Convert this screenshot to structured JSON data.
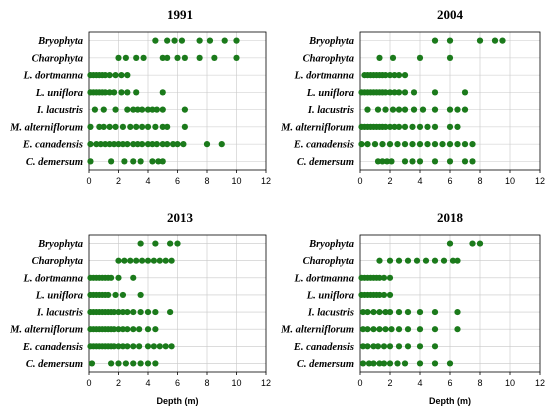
{
  "figure": {
    "colors": {
      "dot": "#1b7a1b",
      "grid": "#c8c8c8",
      "frame": "#000000"
    }
  },
  "chart_data": [
    {
      "type": "scatter",
      "title": "1991",
      "xlabel": "",
      "ylabel": "",
      "xlim": [
        0,
        12
      ],
      "xticks": [
        "0",
        "2",
        "4",
        "6",
        "8",
        "10",
        "12"
      ],
      "grid": true,
      "categories": [
        "Bryophyta",
        "Charophyta",
        "L. dortmanna",
        "L. uniflora",
        "I. lacustris",
        "M. alterniflorum",
        "E. canadensis",
        "C. demersum"
      ],
      "series": [
        {
          "category": "Bryophyta",
          "x": [
            4.5,
            5.3,
            5.8,
            6.3,
            7.5,
            8.2,
            9.2,
            10.0
          ]
        },
        {
          "category": "Charophyta",
          "x": [
            2.0,
            2.5,
            3.2,
            3.7,
            5.0,
            5.3,
            6.0,
            6.5,
            7.5,
            8.5,
            10.0
          ]
        },
        {
          "category": "L. dortmanna",
          "x": [
            0.1,
            0.3,
            0.5,
            0.7,
            0.9,
            1.1,
            1.4,
            1.8,
            2.2,
            2.6
          ]
        },
        {
          "category": "L. uniflora",
          "x": [
            0.1,
            0.3,
            0.5,
            0.7,
            0.9,
            1.1,
            1.4,
            1.7,
            2.2,
            2.6,
            3.2,
            5.0
          ]
        },
        {
          "category": "I. lacustris",
          "x": [
            0.4,
            1.0,
            1.8,
            2.6,
            3.0,
            3.3,
            3.6,
            4.0,
            4.3,
            4.6,
            5.0,
            6.5
          ]
        },
        {
          "category": "M. alterniflorum",
          "x": [
            0.1,
            0.7,
            1.0,
            1.4,
            1.8,
            2.3,
            2.8,
            3.2,
            3.6,
            4.0,
            4.5,
            5.0,
            5.3,
            6.5
          ]
        },
        {
          "category": "E. canadensis",
          "x": [
            0.1,
            0.5,
            0.8,
            1.1,
            1.4,
            1.7,
            2.0,
            2.3,
            2.6,
            3.0,
            3.3,
            3.6,
            4.0,
            4.3,
            4.6,
            5.0,
            5.3,
            5.7,
            6.0,
            6.4,
            8.0,
            9.0
          ]
        },
        {
          "category": "C. demersum",
          "x": [
            0.1,
            1.5,
            2.4,
            3.0,
            3.5,
            4.3,
            4.7,
            5.0
          ]
        }
      ]
    },
    {
      "type": "scatter",
      "title": "2004",
      "xlabel": "",
      "ylabel": "",
      "xlim": [
        0,
        12
      ],
      "xticks": [
        "0",
        "2",
        "4",
        "6",
        "8",
        "10",
        "12"
      ],
      "grid": true,
      "categories": [
        "Bryophyta",
        "Charophyta",
        "L. dortmanna",
        "L. uniflora",
        "I. lacustris",
        "M. alterniflorum",
        "E. canadensis",
        "C. demersum"
      ],
      "series": [
        {
          "category": "Bryophyta",
          "x": [
            5.0,
            6.0,
            8.0,
            9.0,
            9.5
          ]
        },
        {
          "category": "Charophyta",
          "x": [
            1.3,
            2.2,
            4.0,
            6.0
          ]
        },
        {
          "category": "L. dortmanna",
          "x": [
            0.3,
            0.5,
            0.7,
            0.9,
            1.1,
            1.3,
            1.5,
            1.7,
            2.0,
            2.3,
            2.6,
            3.0
          ]
        },
        {
          "category": "L. uniflora",
          "x": [
            0.1,
            0.3,
            0.5,
            0.7,
            0.9,
            1.1,
            1.3,
            1.5,
            1.7,
            2.0,
            2.3,
            2.6,
            3.0,
            3.6,
            5.0,
            7.0
          ]
        },
        {
          "category": "I. lacustris",
          "x": [
            0.5,
            1.2,
            1.7,
            2.2,
            2.6,
            3.0,
            3.6,
            4.2,
            5.0,
            6.0,
            6.5,
            7.0
          ]
        },
        {
          "category": "M. alterniflorum",
          "x": [
            0.1,
            0.3,
            0.5,
            0.7,
            0.9,
            1.1,
            1.3,
            1.5,
            1.7,
            2.0,
            2.3,
            2.6,
            3.0,
            3.5,
            4.0,
            4.5,
            5.0,
            6.0,
            6.5
          ]
        },
        {
          "category": "E. canadensis",
          "x": [
            0.1,
            0.5,
            1.0,
            1.5,
            2.0,
            2.5,
            3.0,
            3.5,
            4.0,
            4.5,
            5.0,
            5.5,
            6.0,
            6.5,
            7.0,
            7.5
          ]
        },
        {
          "category": "C. demersum",
          "x": [
            1.2,
            1.5,
            1.8,
            2.1,
            3.0,
            3.5,
            4.0,
            5.0,
            6.0,
            7.0,
            7.5
          ]
        }
      ]
    },
    {
      "type": "scatter",
      "title": "2013",
      "xlabel": "Depth (m)",
      "ylabel": "",
      "xlim": [
        0,
        12
      ],
      "xticks": [
        "0",
        "2",
        "4",
        "6",
        "8",
        "10",
        "12"
      ],
      "grid": true,
      "categories": [
        "Bryophyta",
        "Charophyta",
        "L. dortmanna",
        "L. uniflora",
        "I. lacustris",
        "M. alterniflorum",
        "E. canadensis",
        "C. demersum"
      ],
      "series": [
        {
          "category": "Bryophyta",
          "x": [
            3.5,
            4.5,
            5.5,
            6.0
          ]
        },
        {
          "category": "Charophyta",
          "x": [
            2.0,
            2.4,
            2.8,
            3.2,
            3.6,
            4.0,
            4.4,
            4.8,
            5.2,
            5.6
          ]
        },
        {
          "category": "L. dortmanna",
          "x": [
            0.1,
            0.3,
            0.5,
            0.7,
            0.9,
            1.1,
            1.3,
            1.5,
            2.0,
            3.0
          ]
        },
        {
          "category": "L. uniflora",
          "x": [
            0.1,
            0.3,
            0.5,
            0.7,
            0.9,
            1.1,
            1.3,
            1.8,
            2.3,
            3.5
          ]
        },
        {
          "category": "I. lacustris",
          "x": [
            0.1,
            0.3,
            0.5,
            0.7,
            0.9,
            1.1,
            1.3,
            1.5,
            1.7,
            2.0,
            2.3,
            2.6,
            3.0,
            3.5,
            4.0,
            4.5,
            5.5
          ]
        },
        {
          "category": "M. alterniflorum",
          "x": [
            0.1,
            0.3,
            0.5,
            0.7,
            0.9,
            1.1,
            1.3,
            1.5,
            1.7,
            2.0,
            2.3,
            2.6,
            3.0,
            3.4,
            4.0,
            4.5
          ]
        },
        {
          "category": "E. canadensis",
          "x": [
            0.1,
            0.3,
            0.5,
            0.7,
            0.9,
            1.1,
            1.3,
            1.5,
            1.7,
            2.0,
            2.3,
            2.6,
            3.0,
            3.4,
            4.0,
            4.4,
            4.8,
            5.2,
            5.6
          ]
        },
        {
          "category": "C. demersum",
          "x": [
            0.2,
            1.5,
            2.0,
            2.5,
            3.0,
            3.5,
            4.0,
            4.5
          ]
        }
      ]
    },
    {
      "type": "scatter",
      "title": "2018",
      "xlabel": "Depth (m)",
      "ylabel": "",
      "xlim": [
        0,
        12
      ],
      "xticks": [
        "0",
        "2",
        "4",
        "6",
        "8",
        "10",
        "12"
      ],
      "grid": true,
      "categories": [
        "Bryophyta",
        "Charophyta",
        "L. dortmanna",
        "L. uniflora",
        "I. lacustris",
        "M. alterniflorum",
        "E. canadensis",
        "C. demersum"
      ],
      "series": [
        {
          "category": "Bryophyta",
          "x": [
            6.0,
            7.5,
            8.0
          ]
        },
        {
          "category": "Charophyta",
          "x": [
            1.3,
            2.0,
            2.6,
            3.2,
            3.8,
            4.4,
            5.0,
            5.6,
            6.2,
            6.5
          ]
        },
        {
          "category": "L. dortmanna",
          "x": [
            0.1,
            0.3,
            0.5,
            0.7,
            0.9,
            1.1,
            1.3,
            1.6,
            2.0
          ]
        },
        {
          "category": "L. uniflora",
          "x": [
            0.1,
            0.3,
            0.5,
            0.7,
            0.9,
            1.1,
            1.3,
            1.6,
            2.0
          ]
        },
        {
          "category": "I. lacustris",
          "x": [
            0.2,
            0.5,
            0.9,
            1.3,
            1.7,
            2.0,
            2.6,
            3.2,
            4.0,
            5.0,
            6.5
          ]
        },
        {
          "category": "M. alterniflorum",
          "x": [
            0.2,
            0.5,
            0.9,
            1.3,
            1.7,
            2.1,
            2.6,
            3.2,
            4.0,
            5.0,
            6.5
          ]
        },
        {
          "category": "E. canadensis",
          "x": [
            0.2,
            0.5,
            0.9,
            1.2,
            1.6,
            2.0,
            2.6,
            3.2,
            4.0,
            5.0
          ]
        },
        {
          "category": "C. demersum",
          "x": [
            0.2,
            0.6,
            0.9,
            1.3,
            1.6,
            2.0,
            2.5,
            3.0,
            4.0,
            5.0,
            6.0
          ]
        }
      ]
    }
  ]
}
